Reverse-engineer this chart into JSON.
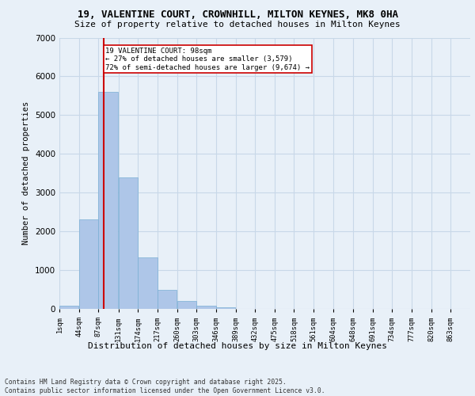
{
  "title_line1": "19, VALENTINE COURT, CROWNHILL, MILTON KEYNES, MK8 0HA",
  "title_line2": "Size of property relative to detached houses in Milton Keynes",
  "xlabel": "Distribution of detached houses by size in Milton Keynes",
  "ylabel": "Number of detached properties",
  "footer_line1": "Contains HM Land Registry data © Crown copyright and database right 2025.",
  "footer_line2": "Contains public sector information licensed under the Open Government Licence v3.0.",
  "bin_labels": [
    "1sqm",
    "44sqm",
    "87sqm",
    "131sqm",
    "174sqm",
    "217sqm",
    "260sqm",
    "303sqm",
    "346sqm",
    "389sqm",
    "432sqm",
    "475sqm",
    "518sqm",
    "561sqm",
    "604sqm",
    "648sqm",
    "691sqm",
    "734sqm",
    "777sqm",
    "820sqm",
    "863sqm"
  ],
  "bar_values": [
    75,
    2300,
    5600,
    3400,
    1320,
    500,
    195,
    90,
    50,
    0,
    0,
    0,
    0,
    0,
    0,
    0,
    0,
    0,
    0,
    0,
    0
  ],
  "bar_color": "#aec6e8",
  "bar_edge_color": "#7aafd4",
  "grid_color": "#c8d8e8",
  "bg_color": "#e8f0f8",
  "red_line_color": "#cc0000",
  "red_line_x": 98,
  "annotation_title": "19 VALENTINE COURT: 98sqm",
  "annotation_line2": "← 27% of detached houses are smaller (3,579)",
  "annotation_line3": "72% of semi-detached houses are larger (9,674) →",
  "annotation_box_color": "#ffffff",
  "annotation_box_edge": "#cc0000",
  "ylim": [
    0,
    7000
  ],
  "yticks": [
    0,
    1000,
    2000,
    3000,
    4000,
    5000,
    6000,
    7000
  ],
  "bin_width": 43
}
